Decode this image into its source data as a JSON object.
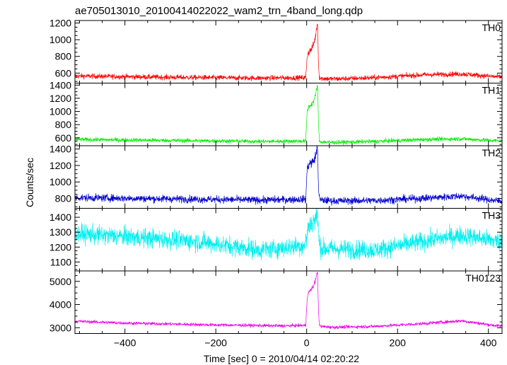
{
  "chart_data": {
    "type": "line",
    "title": "ae705013010_20100414022022_wam2_trn_4band_long.qdp",
    "xlabel": "Time [sec] 0 = 2010/04/14 02:20:22",
    "ylabel": "Counts/sec",
    "xlim": [
      -510,
      430
    ],
    "x_ticks": [
      -400,
      -200,
      0,
      200,
      400
    ],
    "panels": [
      {
        "name": "TH0",
        "color": "#ff0000",
        "ylim": [
          480,
          1230
        ],
        "y_ticks": [
          600,
          800,
          1000,
          1200
        ],
        "baseline": [
          [
            -510,
            565
          ],
          [
            -300,
            550
          ],
          [
            -100,
            540
          ],
          [
            -5,
            545
          ],
          [
            60,
            530
          ],
          [
            150,
            545
          ],
          [
            260,
            580
          ],
          [
            340,
            590
          ],
          [
            420,
            555
          ]
        ],
        "noise": 22,
        "burst": [
          [
            -2,
            545
          ],
          [
            1,
            800
          ],
          [
            5,
            860
          ],
          [
            10,
            880
          ],
          [
            15,
            940
          ],
          [
            20,
            1050
          ],
          [
            22,
            1150
          ],
          [
            24,
            1200
          ],
          [
            26,
            700
          ],
          [
            28,
            560
          ]
        ]
      },
      {
        "name": "TH1",
        "color": "#00ee00",
        "ylim": [
          480,
          1430
        ],
        "y_ticks": [
          600,
          800,
          1000,
          1200,
          1400
        ],
        "baseline": [
          [
            -510,
            575
          ],
          [
            -300,
            560
          ],
          [
            -100,
            545
          ],
          [
            -5,
            550
          ],
          [
            60,
            530
          ],
          [
            150,
            545
          ],
          [
            260,
            575
          ],
          [
            340,
            585
          ],
          [
            420,
            555
          ]
        ],
        "noise": 22,
        "burst": [
          [
            -2,
            550
          ],
          [
            1,
            1000
          ],
          [
            5,
            1080
          ],
          [
            10,
            1100
          ],
          [
            15,
            1150
          ],
          [
            20,
            1250
          ],
          [
            22,
            1350
          ],
          [
            24,
            1400
          ],
          [
            26,
            800
          ],
          [
            28,
            570
          ]
        ]
      },
      {
        "name": "TH2",
        "color": "#0000cc",
        "ylim": [
          680,
          1440
        ],
        "y_ticks": [
          800,
          1000,
          1200,
          1400
        ],
        "baseline": [
          [
            -510,
            810
          ],
          [
            -300,
            795
          ],
          [
            -100,
            780
          ],
          [
            -5,
            790
          ],
          [
            60,
            770
          ],
          [
            150,
            775
          ],
          [
            250,
            800
          ],
          [
            340,
            830
          ],
          [
            420,
            770
          ]
        ],
        "noise": 32,
        "burst": [
          [
            -2,
            790
          ],
          [
            1,
            1150
          ],
          [
            5,
            1220
          ],
          [
            10,
            1230
          ],
          [
            15,
            1250
          ],
          [
            20,
            1320
          ],
          [
            22,
            1380
          ],
          [
            24,
            1420
          ],
          [
            26,
            950
          ],
          [
            28,
            800
          ]
        ]
      },
      {
        "name": "TH3",
        "color": "#00eeee",
        "ylim": [
          1040,
          1460
        ],
        "y_ticks": [
          1100,
          1200,
          1300,
          1400
        ],
        "baseline": [
          [
            -510,
            1290
          ],
          [
            -400,
            1270
          ],
          [
            -250,
            1240
          ],
          [
            -100,
            1180
          ],
          [
            -10,
            1210
          ],
          [
            40,
            1190
          ],
          [
            150,
            1180
          ],
          [
            260,
            1240
          ],
          [
            340,
            1280
          ],
          [
            420,
            1240
          ]
        ],
        "noise": 45,
        "burst": [
          [
            -2,
            1230
          ],
          [
            3,
            1330
          ],
          [
            10,
            1360
          ],
          [
            18,
            1380
          ],
          [
            24,
            1420
          ],
          [
            27,
            1250
          ],
          [
            30,
            1200
          ]
        ]
      },
      {
        "name": "TH0123",
        "color": "#ee00ee",
        "ylim": [
          2750,
          5450
        ],
        "y_ticks": [
          3000,
          4000,
          5000
        ],
        "baseline": [
          [
            -510,
            3280
          ],
          [
            -400,
            3200
          ],
          [
            -200,
            3120
          ],
          [
            -50,
            3080
          ],
          [
            -5,
            3100
          ],
          [
            60,
            3020
          ],
          [
            150,
            3060
          ],
          [
            260,
            3180
          ],
          [
            340,
            3300
          ],
          [
            420,
            3080
          ]
        ],
        "noise": 50,
        "burst": [
          [
            -2,
            3100
          ],
          [
            1,
            4300
          ],
          [
            5,
            4550
          ],
          [
            10,
            4650
          ],
          [
            15,
            4800
          ],
          [
            20,
            5100
          ],
          [
            22,
            5250
          ],
          [
            24,
            5400
          ],
          [
            26,
            3700
          ],
          [
            28,
            3150
          ]
        ]
      }
    ]
  }
}
